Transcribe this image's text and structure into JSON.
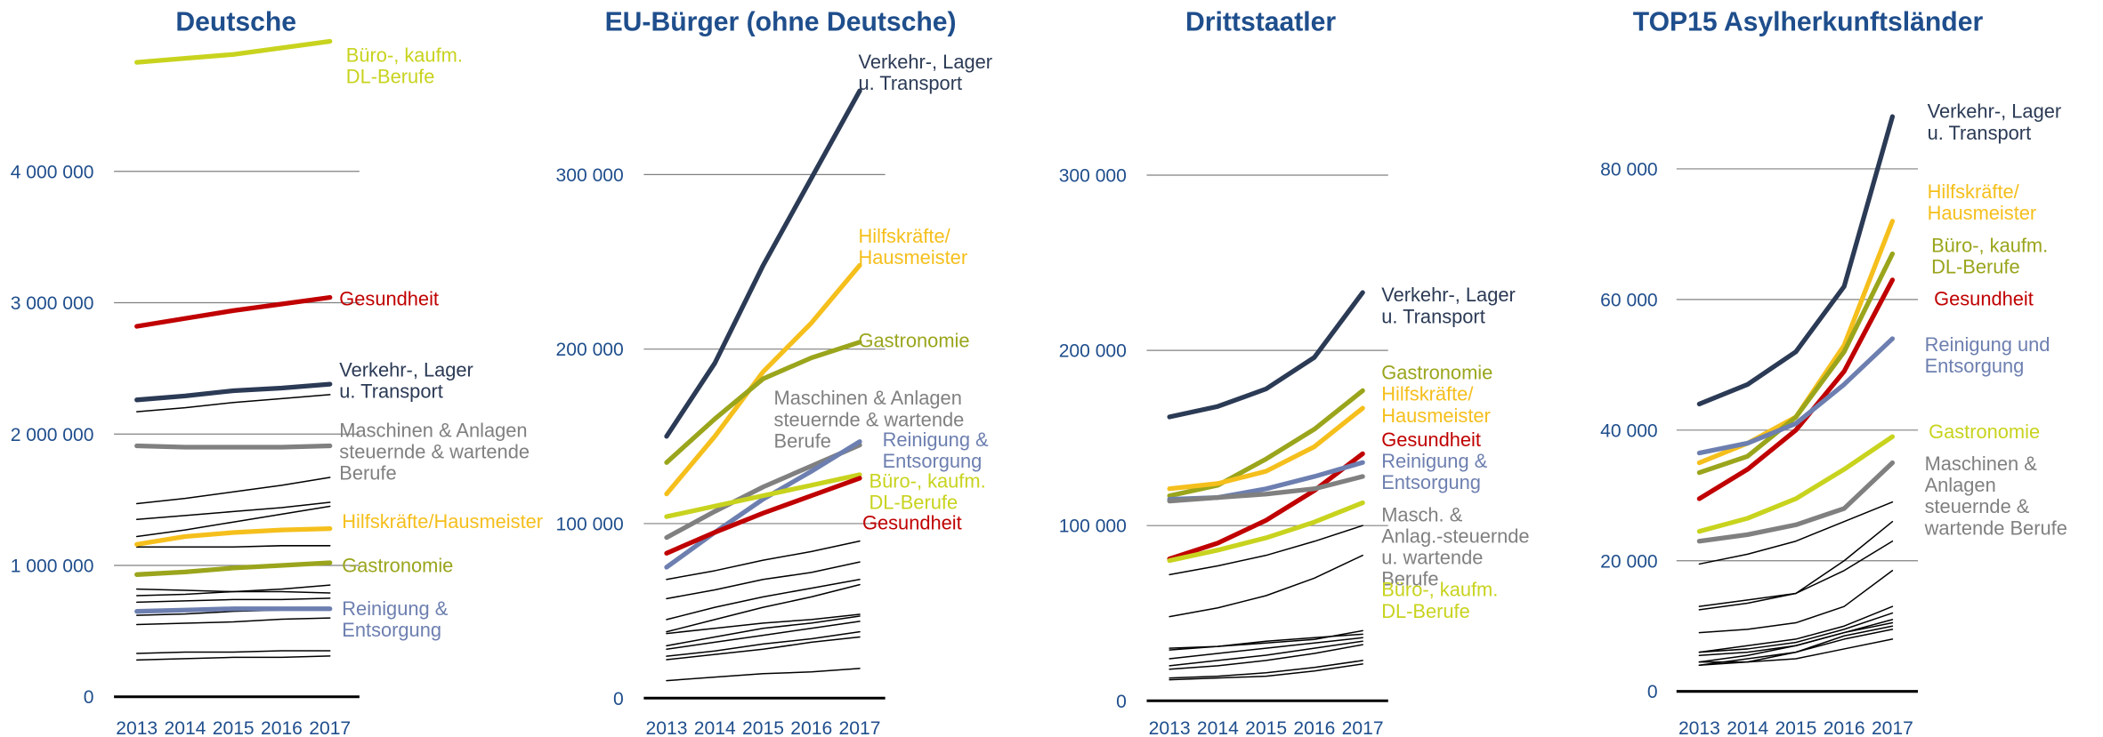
{
  "chart_data": [
    {
      "type": "line",
      "title": "Deutsche",
      "categories": [
        "2013",
        "2014",
        "2015",
        "2016",
        "2017"
      ],
      "ylim": [
        0,
        5100000
      ],
      "yticks": [
        0,
        {
          "value": 1000000,
          "label": "1 000 000"
        },
        {
          "value": 2000000,
          "label": "2 000 000"
        },
        {
          "value": 3000000,
          "label": "3 000 000"
        },
        {
          "value": 4000000,
          "label": "4 000 000"
        }
      ],
      "series": [
        {
          "color": "#000000",
          "values": [
            2170000,
            2200000,
            2240000,
            2270000,
            2300000
          ]
        },
        {
          "color": "#000000",
          "values": [
            1470000,
            1510000,
            1560000,
            1610000,
            1670000
          ]
        },
        {
          "color": "#000000",
          "values": [
            1350000,
            1380000,
            1410000,
            1440000,
            1480000
          ]
        },
        {
          "color": "#000000",
          "values": [
            1220000,
            1270000,
            1330000,
            1390000,
            1450000
          ]
        },
        {
          "color": "#000000",
          "values": [
            1140000,
            1140000,
            1140000,
            1150000,
            1150000
          ]
        },
        {
          "color": "#000000",
          "values": [
            820000,
            810000,
            800000,
            800000,
            790000
          ]
        },
        {
          "color": "#000000",
          "values": [
            770000,
            780000,
            800000,
            820000,
            850000
          ]
        },
        {
          "color": "#000000",
          "values": [
            720000,
            730000,
            740000,
            740000,
            750000
          ]
        },
        {
          "color": "#000000",
          "values": [
            620000,
            630000,
            650000,
            660000,
            680000
          ]
        },
        {
          "color": "#000000",
          "values": [
            550000,
            560000,
            570000,
            590000,
            600000
          ]
        },
        {
          "color": "#000000",
          "values": [
            330000,
            340000,
            340000,
            350000,
            350000
          ]
        },
        {
          "color": "#000000",
          "values": [
            280000,
            290000,
            300000,
            300000,
            310000
          ]
        },
        {
          "name": "Büro-, kaufm. DL-Berufe",
          "color": "#c8d31e",
          "values": [
            4830000,
            4860000,
            4890000,
            4940000,
            4990000
          ]
        },
        {
          "name": "Gesundheit",
          "color": "#c00000",
          "values": [
            2820000,
            2880000,
            2940000,
            2990000,
            3040000
          ]
        },
        {
          "name": "Verkehr-, Lager u. Transport",
          "color": "#2b3a55",
          "values": [
            2260000,
            2290000,
            2330000,
            2350000,
            2380000
          ]
        },
        {
          "name": "Maschinen & Anlagen steuernde & wartende Berufe",
          "color": "#808080",
          "values": [
            1910000,
            1900000,
            1900000,
            1900000,
            1910000
          ]
        },
        {
          "name": "Hilfskräfte/Hausmeister",
          "color": "#f5bf1c",
          "values": [
            1160000,
            1220000,
            1250000,
            1270000,
            1280000
          ]
        },
        {
          "name": "Gastronomie",
          "color": "#9aa51c",
          "values": [
            930000,
            950000,
            980000,
            1000000,
            1020000
          ]
        },
        {
          "name": "Reinigung & Entsorgung",
          "color": "#6d7fb0",
          "values": [
            650000,
            660000,
            670000,
            670000,
            670000
          ]
        }
      ]
    },
    {
      "type": "line",
      "title": "EU-Bürger (ohne Deutsche)",
      "categories": [
        "2013",
        "2014",
        "2015",
        "2016",
        "2017"
      ],
      "ylim": [
        0,
        377000
      ],
      "yticks": [
        0,
        {
          "value": 100000,
          "label": "100 000"
        },
        {
          "value": 200000,
          "label": "200 000"
        },
        {
          "value": 300000,
          "label": "300 000"
        }
      ],
      "series": [
        {
          "color": "#000000",
          "values": [
            68000,
            73000,
            79000,
            84000,
            90000
          ]
        },
        {
          "color": "#000000",
          "values": [
            57000,
            62000,
            68000,
            72000,
            78000
          ]
        },
        {
          "color": "#000000",
          "values": [
            45000,
            52000,
            58000,
            63000,
            68000
          ]
        },
        {
          "color": "#000000",
          "values": [
            38000,
            45000,
            52000,
            58000,
            65000
          ]
        },
        {
          "color": "#000000",
          "values": [
            37000,
            40000,
            43000,
            45000,
            48000
          ]
        },
        {
          "color": "#000000",
          "values": [
            30000,
            35000,
            40000,
            43000,
            47000
          ]
        },
        {
          "color": "#000000",
          "values": [
            28000,
            32000,
            36000,
            40000,
            44000
          ]
        },
        {
          "color": "#000000",
          "values": [
            24000,
            27000,
            31000,
            34000,
            38000
          ]
        },
        {
          "color": "#000000",
          "values": [
            22000,
            25000,
            28000,
            32000,
            35000
          ]
        },
        {
          "color": "#000000",
          "values": [
            10000,
            12000,
            14000,
            15000,
            17000
          ]
        },
        {
          "name": "Verkehr-, Lager u. Transport",
          "color": "#2b3a55",
          "values": [
            150000,
            192000,
            248000,
            298000,
            348000
          ]
        },
        {
          "name": "Hilfskräfte/ Hausmeister",
          "color": "#f5bf1c",
          "values": [
            117000,
            150000,
            187000,
            215000,
            248000
          ]
        },
        {
          "name": "Gastronomie",
          "color": "#9aa51c",
          "values": [
            135000,
            160000,
            183000,
            195000,
            204000
          ]
        },
        {
          "name": "Maschinen & Anlagen steuernde & wartende Berufe",
          "color": "#808080",
          "values": [
            92000,
            107000,
            121000,
            133000,
            145000
          ]
        },
        {
          "name": "Reinigung & Entsorgung",
          "color": "#6d7fb0",
          "values": [
            75000,
            95000,
            114000,
            130000,
            147000
          ]
        },
        {
          "name": "Büro-, kaufm. DL-Berufe",
          "color": "#c8d31e",
          "values": [
            104000,
            110000,
            116000,
            122000,
            128000
          ]
        },
        {
          "name": "Gesundheit",
          "color": "#c00000",
          "values": [
            83000,
            95000,
            106000,
            116000,
            126000
          ]
        }
      ]
    },
    {
      "type": "line",
      "title": "Drittstaatler",
      "categories": [
        "2013",
        "2014",
        "2015",
        "2016",
        "2017"
      ],
      "ylim": [
        0,
        390000
      ],
      "yticks": [
        0,
        {
          "value": 100000,
          "label": "100 000"
        },
        {
          "value": 200000,
          "label": "200 000"
        },
        {
          "value": 300000,
          "label": "300 000"
        }
      ],
      "series": [
        {
          "color": "#000000",
          "values": [
            72000,
            77000,
            83000,
            91000,
            100000
          ]
        },
        {
          "color": "#000000",
          "values": [
            48000,
            53000,
            60000,
            70000,
            83000
          ]
        },
        {
          "color": "#000000",
          "values": [
            30000,
            31000,
            33000,
            35000,
            40000
          ]
        },
        {
          "color": "#000000",
          "values": [
            29000,
            31000,
            34000,
            36000,
            38000
          ]
        },
        {
          "color": "#000000",
          "values": [
            24000,
            27000,
            30000,
            33000,
            36000
          ]
        },
        {
          "color": "#000000",
          "values": [
            20000,
            23000,
            26000,
            30000,
            34000
          ]
        },
        {
          "color": "#000000",
          "values": [
            18000,
            20000,
            23000,
            27000,
            32000
          ]
        },
        {
          "color": "#000000",
          "values": [
            13000,
            14000,
            16000,
            19000,
            23000
          ]
        },
        {
          "color": "#000000",
          "values": [
            12000,
            13000,
            14000,
            17000,
            21000
          ]
        },
        {
          "name": "Verkehr-, Lager u. Transport",
          "color": "#2b3a55",
          "values": [
            162000,
            168000,
            178000,
            196000,
            233000
          ]
        },
        {
          "name": "Gastronomie",
          "color": "#9aa51c",
          "values": [
            117000,
            123000,
            138000,
            155000,
            177000
          ]
        },
        {
          "name": "Hilfskräfte/ Hausmeister",
          "color": "#f5bf1c",
          "values": [
            121000,
            124000,
            131000,
            145000,
            167000
          ]
        },
        {
          "name": "Gesundheit",
          "color": "#c00000",
          "values": [
            81000,
            90000,
            103000,
            120000,
            141000
          ]
        },
        {
          "name": "Reinigung & Entsorgung",
          "color": "#6d7fb0",
          "values": [
            115000,
            116000,
            121000,
            128000,
            136000
          ]
        },
        {
          "name": "Masch. & Anlag.-steuernde u. wartende Berufe",
          "color": "#808080",
          "values": [
            114000,
            116000,
            118000,
            121000,
            128000
          ]
        },
        {
          "name": "Büro-, kaufm. DL-Berufe",
          "color": "#c8d31e",
          "values": [
            80000,
            86000,
            93000,
            102000,
            113000
          ]
        }
      ]
    },
    {
      "type": "line",
      "title": "TOP15 Asylherkunftsländer",
      "categories": [
        "2013",
        "2014",
        "2015",
        "2016",
        "2017"
      ],
      "ylim": [
        0,
        104000
      ],
      "yticks": [
        0,
        {
          "value": 20000,
          "label": "20 000"
        },
        {
          "value": 40000,
          "label": "40 000"
        },
        {
          "value": 60000,
          "label": "60 000"
        },
        {
          "value": 80000,
          "label": "80 000"
        }
      ],
      "series": [
        {
          "color": "#000000",
          "values": [
            19500,
            21000,
            23000,
            26000,
            29000
          ]
        },
        {
          "color": "#000000",
          "values": [
            13000,
            14000,
            15000,
            20000,
            26000
          ]
        },
        {
          "color": "#000000",
          "values": [
            12500,
            13500,
            15000,
            18500,
            23000
          ]
        },
        {
          "color": "#000000",
          "values": [
            9000,
            9500,
            10500,
            13000,
            18500
          ]
        },
        {
          "color": "#000000",
          "values": [
            6000,
            7000,
            8000,
            10000,
            13000
          ]
        },
        {
          "color": "#000000",
          "values": [
            6000,
            6500,
            7500,
            9500,
            12000
          ]
        },
        {
          "color": "#000000",
          "values": [
            5500,
            6000,
            7000,
            9000,
            11000
          ]
        },
        {
          "color": "#000000",
          "values": [
            4500,
            5500,
            7000,
            9000,
            10500
          ]
        },
        {
          "color": "#000000",
          "values": [
            4500,
            4500,
            6000,
            8500,
            10000
          ]
        },
        {
          "color": "#000000",
          "values": [
            4000,
            5000,
            6000,
            8000,
            9500
          ]
        },
        {
          "color": "#000000",
          "values": [
            4000,
            4500,
            5000,
            6500,
            8000
          ]
        },
        {
          "name": "Verkehr-, Lager u. Transport",
          "color": "#2b3a55",
          "values": [
            44000,
            47000,
            52000,
            62000,
            88000
          ]
        },
        {
          "name": "Hilfskräfte/ Hausmeister",
          "color": "#f5bf1c",
          "values": [
            35000,
            38000,
            42000,
            53000,
            72000
          ]
        },
        {
          "name": "Büro-, kaufm. DL-Berufe",
          "color": "#9aa51c",
          "values": [
            33500,
            36000,
            42000,
            52000,
            67000
          ]
        },
        {
          "name": "Gesundheit",
          "color": "#c00000",
          "values": [
            29500,
            34000,
            40000,
            49000,
            63000
          ]
        },
        {
          "name": "Reinigung und Entsorgung",
          "color": "#6d7fb0",
          "values": [
            36500,
            38000,
            41000,
            47000,
            54000
          ]
        },
        {
          "name": "Gastronomie",
          "color": "#c8d31e",
          "values": [
            24500,
            26500,
            29500,
            34000,
            39000
          ]
        },
        {
          "name": "Maschinen & Anlagen steuernde & wartende Berufe",
          "color": "#808080",
          "values": [
            23000,
            24000,
            25500,
            28000,
            35000
          ]
        }
      ]
    }
  ]
}
